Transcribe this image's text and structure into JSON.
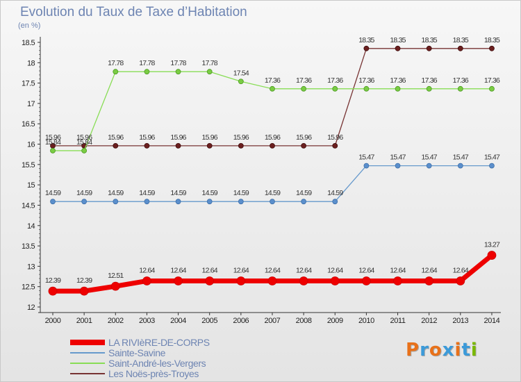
{
  "title": "Evolution du Taux de Taxe d’Habitation",
  "unit_label": "(en %)",
  "logo": {
    "text": "Proxiti",
    "colors": [
      "#e8711a",
      "#3b9ad9",
      "#e8711a",
      "#3b9ad9",
      "#e8711a",
      "#3b9ad9",
      "#7ab800"
    ]
  },
  "chart_data": {
    "type": "line",
    "title": "Evolution du Taux de Taxe d’Habitation",
    "ylabel": "(en %)",
    "xlabel": "",
    "x": [
      "2000",
      "2001",
      "2002",
      "2003",
      "2004",
      "2005",
      "2006",
      "2007",
      "2008",
      "2009",
      "2010",
      "2011",
      "2012",
      "2013",
      "2014"
    ],
    "ylim": [
      12,
      18.5
    ],
    "yticks": [
      "12",
      "12.5",
      "13",
      "13.5",
      "14",
      "14.5",
      "15",
      "15.5",
      "16",
      "16.5",
      "17",
      "17.5",
      "18",
      "18.5"
    ],
    "grid": false,
    "legend_position": "bottom-left",
    "series": [
      {
        "name": "LA RIVIèRE-DE-CORPS",
        "color": "#ee0000",
        "values": [
          12.39,
          12.39,
          12.51,
          12.64,
          12.64,
          12.64,
          12.64,
          12.64,
          12.64,
          12.64,
          12.64,
          12.64,
          12.64,
          12.64,
          13.27
        ],
        "labels": [
          "12.39",
          "12.39",
          "12.51",
          "12.64",
          "12.64",
          "12.64",
          "12.64",
          "12.64",
          "12.64",
          "12.64",
          "12.64",
          "12.64",
          "12.64",
          "12.64",
          "13.27"
        ]
      },
      {
        "name": "Sainte-Savine",
        "color": "#6699cc",
        "values": [
          14.59,
          14.59,
          14.59,
          14.59,
          14.59,
          14.59,
          14.59,
          14.59,
          14.59,
          14.59,
          15.47,
          15.47,
          15.47,
          15.47,
          15.47
        ],
        "labels": [
          "14.59",
          "14.59",
          "14.59",
          "14.59",
          "14.59",
          "14.59",
          "14.59",
          "14.59",
          "14.59",
          "14.59",
          "15.47",
          "15.47",
          "15.47",
          "15.47",
          "15.47"
        ]
      },
      {
        "name": "Saint-André-les-Vergers",
        "color": "#88dd55",
        "values": [
          15.84,
          15.84,
          17.78,
          17.78,
          17.78,
          17.78,
          17.54,
          17.36,
          17.36,
          17.36,
          17.36,
          17.36,
          17.36,
          17.36,
          17.36
        ],
        "labels": [
          "15.84",
          "15.84",
          "17.78",
          "17.78",
          "17.78",
          "17.78",
          "17.54",
          "17.36",
          "17.36",
          "17.36",
          "17.36",
          "17.36",
          "17.36",
          "17.36",
          "17.36"
        ]
      },
      {
        "name": "Les Noës-près-Troyes",
        "color": "#773333",
        "values": [
          15.96,
          15.96,
          15.96,
          15.96,
          15.96,
          15.96,
          15.96,
          15.96,
          15.96,
          15.96,
          18.35,
          18.35,
          18.35,
          18.35,
          18.35
        ],
        "labels": [
          "15.96",
          "15.96",
          "15.96",
          "15.96",
          "15.96",
          "15.96",
          "15.96",
          "15.96",
          "15.96",
          "15.96",
          "18.35",
          "18.35",
          "18.35",
          "18.35",
          "18.35"
        ]
      }
    ]
  }
}
